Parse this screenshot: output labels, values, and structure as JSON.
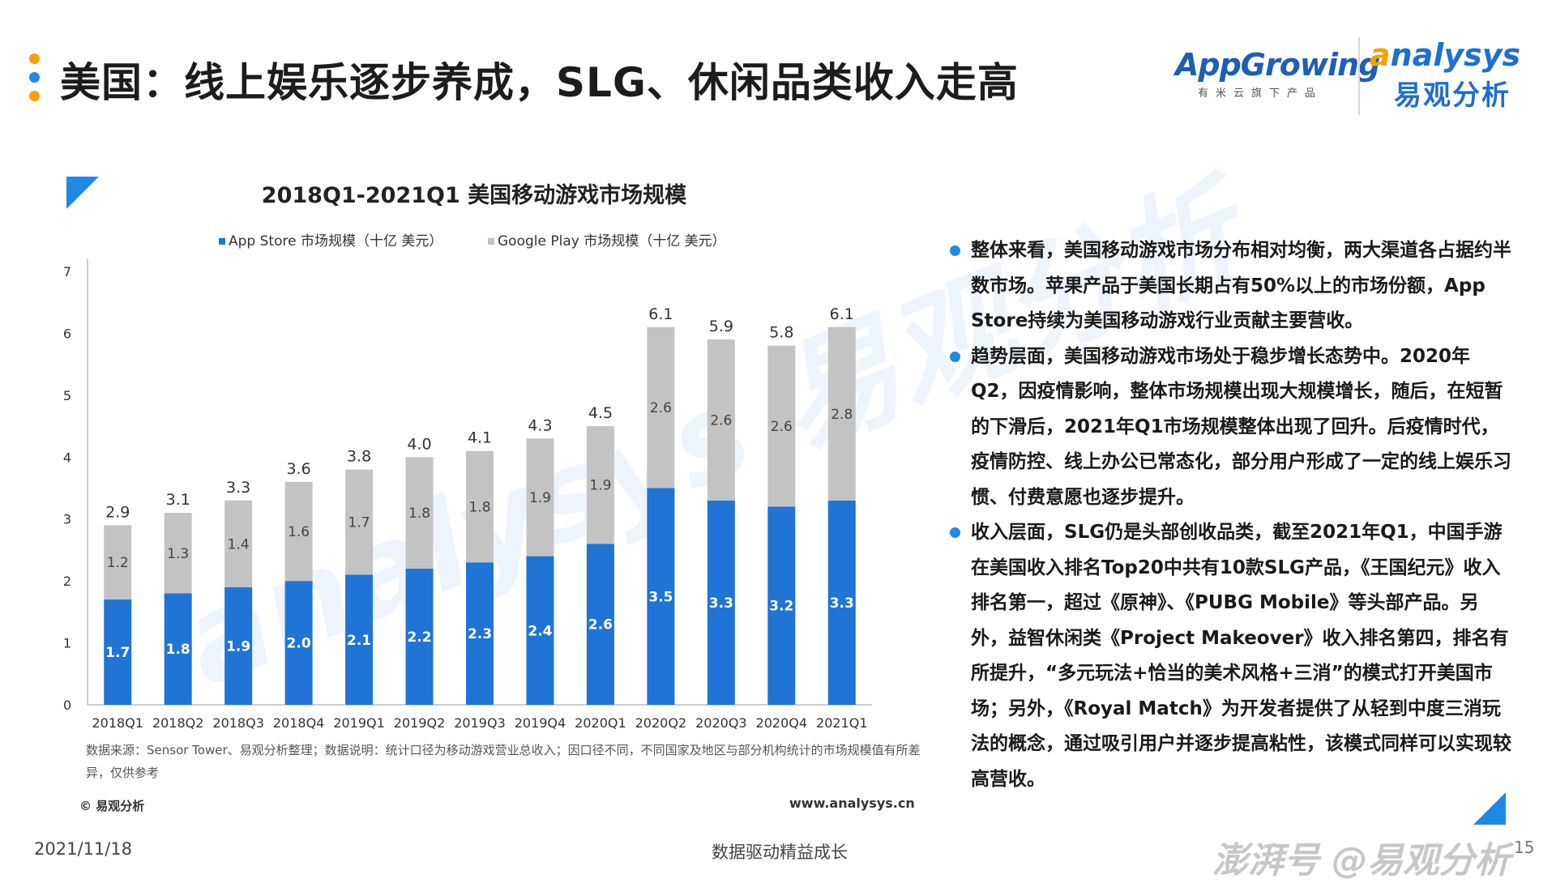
{
  "page": {
    "title": "美国：线上娱乐逐步养成，SLG、休闲品类收入走高",
    "dot_colors": [
      "#f5a200",
      "#1f8ae6",
      "#f5a200"
    ],
    "accent": "#1f8ae6"
  },
  "logos": {
    "appgrowing": {
      "main": "AppGrowing",
      "sub": "有米云旗下产品"
    },
    "analysys": {
      "main_prefix": "a",
      "main_rest": "nalysys",
      "sub": "易观分析"
    }
  },
  "chart_data": {
    "type": "bar",
    "stacked": true,
    "title": "2018Q1-2021Q1 美国移动游戏市场规模",
    "categories": [
      "2018Q1",
      "2018Q2",
      "2018Q3",
      "2018Q4",
      "2019Q1",
      "2019Q2",
      "2019Q3",
      "2019Q4",
      "2020Q1",
      "2020Q2",
      "2020Q3",
      "2020Q4",
      "2021Q1"
    ],
    "series": [
      {
        "name": "App Store 市场规模（十亿 美元）",
        "color": "#1f74d6",
        "values": [
          1.7,
          1.8,
          1.9,
          2.0,
          2.1,
          2.2,
          2.3,
          2.4,
          2.6,
          3.5,
          3.3,
          3.2,
          3.3
        ],
        "labels": [
          "1.7",
          "1.8",
          "1.9",
          "2.0",
          "2.1",
          "2.2",
          "2.3",
          "2.4",
          "2.6",
          "3.5",
          "3.3",
          "3.2",
          "3.3"
        ]
      },
      {
        "name": "Google Play 市场规模（十亿 美元）",
        "color": "#c3c3c3",
        "values": [
          1.2,
          1.3,
          1.4,
          1.6,
          1.7,
          1.8,
          1.8,
          1.9,
          1.9,
          2.6,
          2.6,
          2.6,
          2.8
        ],
        "labels": [
          "1.2",
          "1.3",
          "1.4",
          "1.6",
          "1.7",
          "1.8",
          "1.8",
          "1.9",
          "1.9",
          "2.6",
          "2.6",
          "2.6",
          "2.8"
        ]
      }
    ],
    "totals": [
      2.9,
      3.1,
      3.3,
      3.6,
      3.8,
      4.0,
      4.1,
      4.3,
      4.5,
      6.1,
      5.9,
      5.8,
      6.1
    ],
    "total_labels": [
      "2.9",
      "3.1",
      "3.3",
      "3.6",
      "3.8",
      "4.0",
      "4.1",
      "4.3",
      "4.5",
      "6.1",
      "5.9",
      "5.8",
      "6.1"
    ],
    "ylim": [
      0,
      7
    ],
    "yticks": [
      0,
      1,
      2,
      3,
      4,
      5,
      6,
      7
    ],
    "legend_position": "top",
    "grid": false,
    "watermark": "analysys 易观分析"
  },
  "source_note": "数据来源：Sensor Tower、易观分析整理；数据说明：统计口径为移动游戏营业总收入；因口径不同，不同国家及地区与部分机构统计的市场规模值有所差异，仅供参考",
  "copyright": "© 易观分析",
  "website": "www.analysys.cn",
  "bullets": [
    "整体来看，美国移动游戏市场分布相对均衡，两大渠道各占据约半数市场。苹果产品于美国长期占有50%以上的市场份额，App Store持续为美国移动游戏行业贡献主要营收。",
    "趋势层面，美国移动游戏市场处于稳步增长态势中。2020年Q2，因疫情影响，整体市场规模出现大规模增长，随后，在短暂的下滑后，2021年Q1市场规模整体出现了回升。后疫情时代，疫情防控、线上办公已常态化，部分用户形成了一定的线上娱乐习惯、付费意愿也逐步提升。",
    "收入层面，SLG仍是头部创收品类，截至2021年Q1，中国手游在美国收入排名Top20中共有10款SLG产品，《王国纪元》收入排名第一，超过《原神》、《PUBG Mobile》等头部产品。另外，益智休闲类《Project Makeover》收入排名第四，排名有所提升，“多元玩法+恰当的美术风格+三消”的模式打开美国市场；另外，《Royal Match》为开发者提供了从轻到中度三消玩法的概念，通过吸引用户并逐步提高粘性，该模式同样可以实现较高营收。"
  ],
  "footer": {
    "date": "2021/11/18",
    "slogan": "数据驱动精益成长",
    "watermark": "澎湃号 @易观分析",
    "page_number": "15"
  }
}
